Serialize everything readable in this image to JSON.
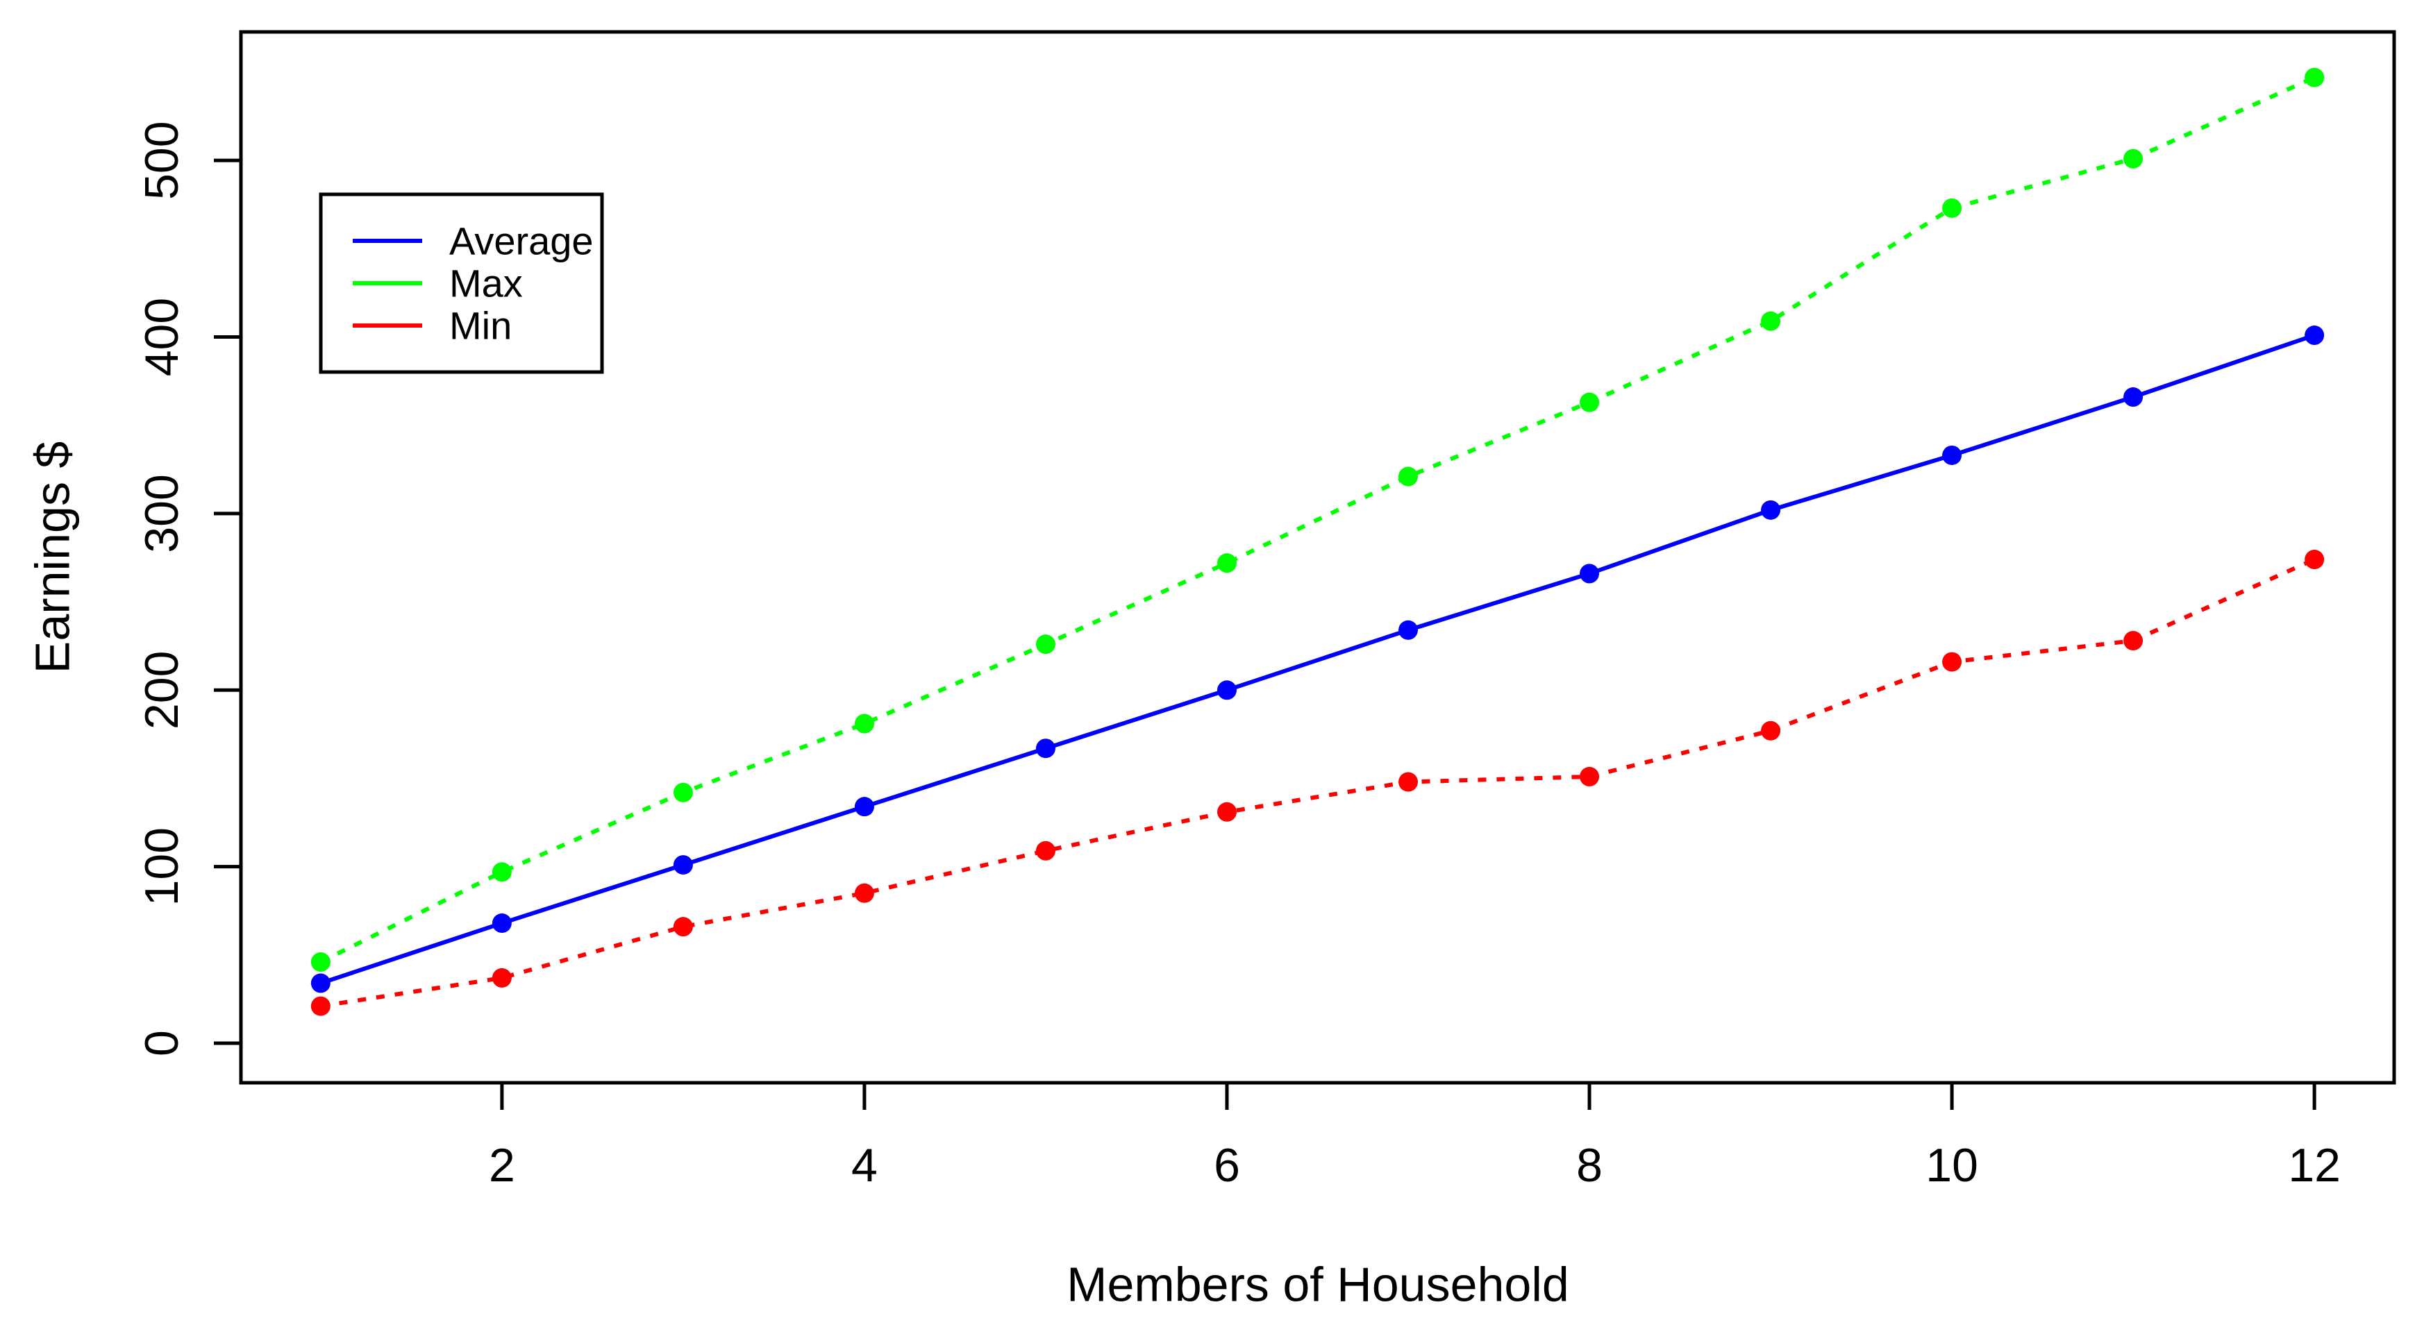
{
  "chart_data": {
    "type": "line",
    "title": "",
    "xlabel": "Members of Household",
    "ylabel": "Earnings $",
    "x": [
      1,
      2,
      3,
      4,
      5,
      6,
      7,
      8,
      9,
      10,
      11,
      12
    ],
    "series": [
      {
        "name": "Average",
        "color": "#0000FF",
        "line_style": "solid",
        "values": [
          34,
          68,
          101,
          134,
          167,
          200,
          234,
          266,
          302,
          333,
          366,
          401
        ]
      },
      {
        "name": "Max",
        "color": "#00FF00",
        "line_style": "dotted",
        "values": [
          46,
          97,
          142,
          181,
          226,
          272,
          321,
          363,
          409,
          473,
          501,
          547
        ]
      },
      {
        "name": "Min",
        "color": "#FF0000",
        "line_style": "dotted",
        "values": [
          21,
          37,
          66,
          85,
          109,
          131,
          148,
          151,
          177,
          216,
          228,
          274
        ]
      }
    ],
    "x_ticks": [
      2,
      4,
      6,
      8,
      10,
      12
    ],
    "y_ticks": [
      0,
      100,
      200,
      300,
      400,
      500
    ],
    "xlim": [
      0.56,
      12.44
    ],
    "ylim": [
      -22.4,
      572.8
    ],
    "grid": false,
    "legend_position": "top-left",
    "background": "#FFFFFF",
    "axis_color": "#000000",
    "point_shape": "filled-circle"
  }
}
